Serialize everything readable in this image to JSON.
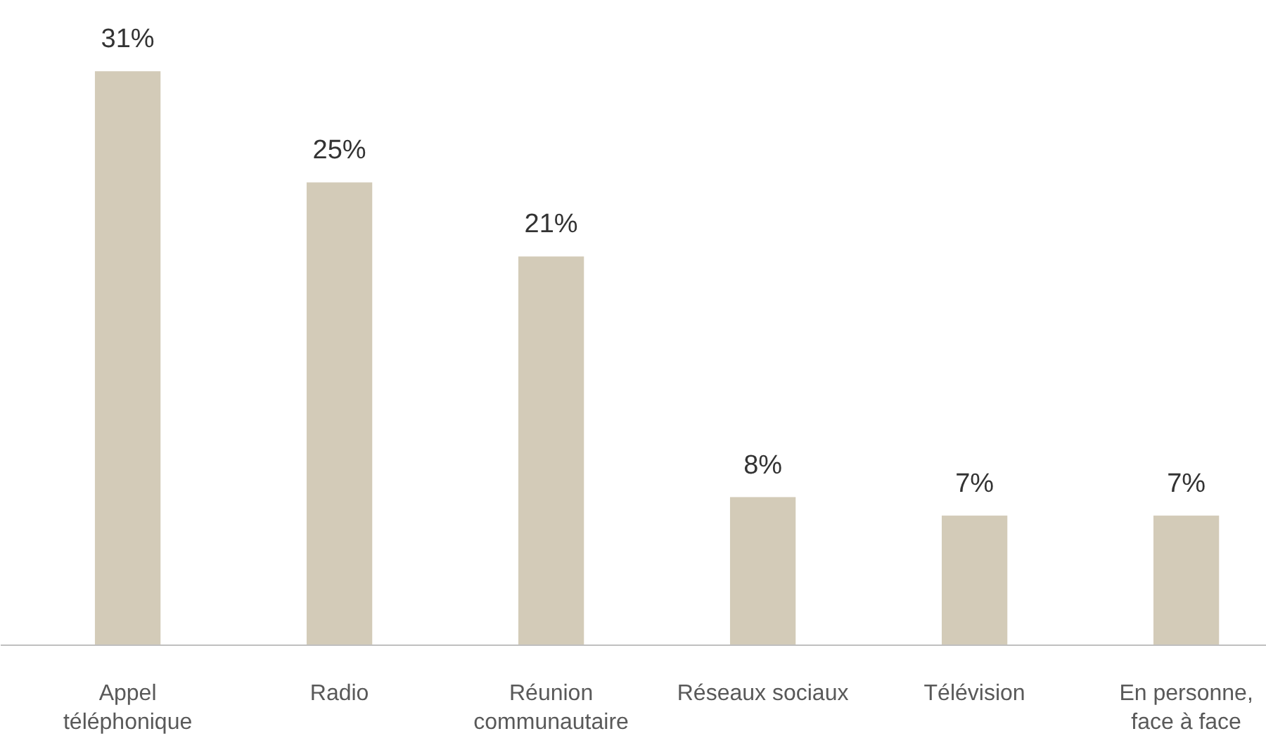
{
  "chart_data": {
    "type": "bar",
    "categories": [
      "Appel\ntéléphonique",
      "Radio",
      "Réunion\ncommunautaire",
      "Réseaux sociaux",
      "Télévision",
      "En personne,\nface à face"
    ],
    "values": [
      31,
      25,
      21,
      8,
      7,
      7
    ],
    "value_labels": [
      "31%",
      "25%",
      "21%",
      "8%",
      "7%",
      "7%"
    ],
    "color": "#d3cbb8"
  }
}
